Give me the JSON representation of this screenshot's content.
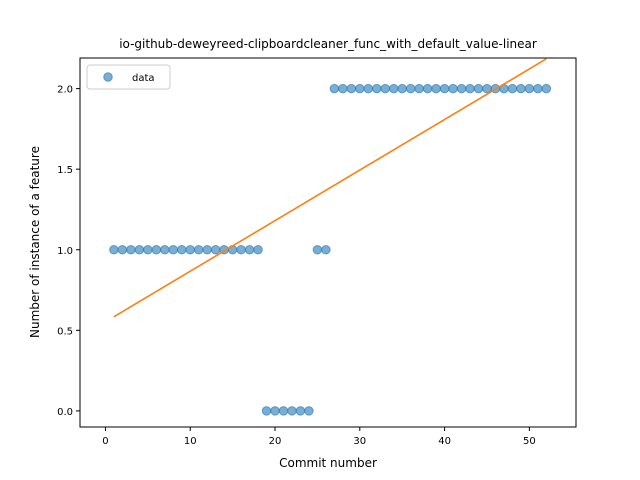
{
  "chart_data": {
    "type": "scatter",
    "title": "io-github-deweyreed-clipboardcleaner_func_with_default_value-linear",
    "xlabel": "Commit number",
    "ylabel": "Number of instance of a feature",
    "xlim": [
      -3,
      55.5
    ],
    "ylim": [
      -0.1,
      2.19
    ],
    "xticks": [
      0,
      10,
      20,
      30,
      40,
      50
    ],
    "yticks": [
      0.0,
      0.5,
      1.0,
      1.5,
      2.0
    ],
    "xtick_labels": [
      "0",
      "10",
      "20",
      "30",
      "40",
      "50"
    ],
    "ytick_labels": [
      "0.0",
      "0.5",
      "1.0",
      "1.5",
      "2.0"
    ],
    "grid": false,
    "legend_position": "top-left",
    "series": [
      {
        "name": "data",
        "kind": "scatter",
        "color": "#1f77b4",
        "x": [
          1,
          2,
          3,
          4,
          5,
          6,
          7,
          8,
          9,
          10,
          11,
          12,
          13,
          14,
          15,
          16,
          17,
          18,
          19,
          20,
          21,
          22,
          23,
          24,
          25,
          26,
          27,
          28,
          29,
          30,
          31,
          32,
          33,
          34,
          35,
          36,
          37,
          38,
          39,
          40,
          41,
          42,
          43,
          44,
          45,
          46,
          47,
          48,
          49,
          50,
          51,
          52
        ],
        "y": [
          1,
          1,
          1,
          1,
          1,
          1,
          1,
          1,
          1,
          1,
          1,
          1,
          1,
          1,
          1,
          1,
          1,
          1,
          0,
          0,
          0,
          0,
          0,
          0,
          1,
          1,
          2,
          2,
          2,
          2,
          2,
          2,
          2,
          2,
          2,
          2,
          2,
          2,
          2,
          2,
          2,
          2,
          2,
          2,
          2,
          2,
          2,
          2,
          2,
          2,
          2,
          2
        ]
      },
      {
        "kind": "line",
        "color": "#ff7f0e",
        "x": [
          1,
          52
        ],
        "y": [
          0.584,
          2.185
        ]
      }
    ]
  }
}
